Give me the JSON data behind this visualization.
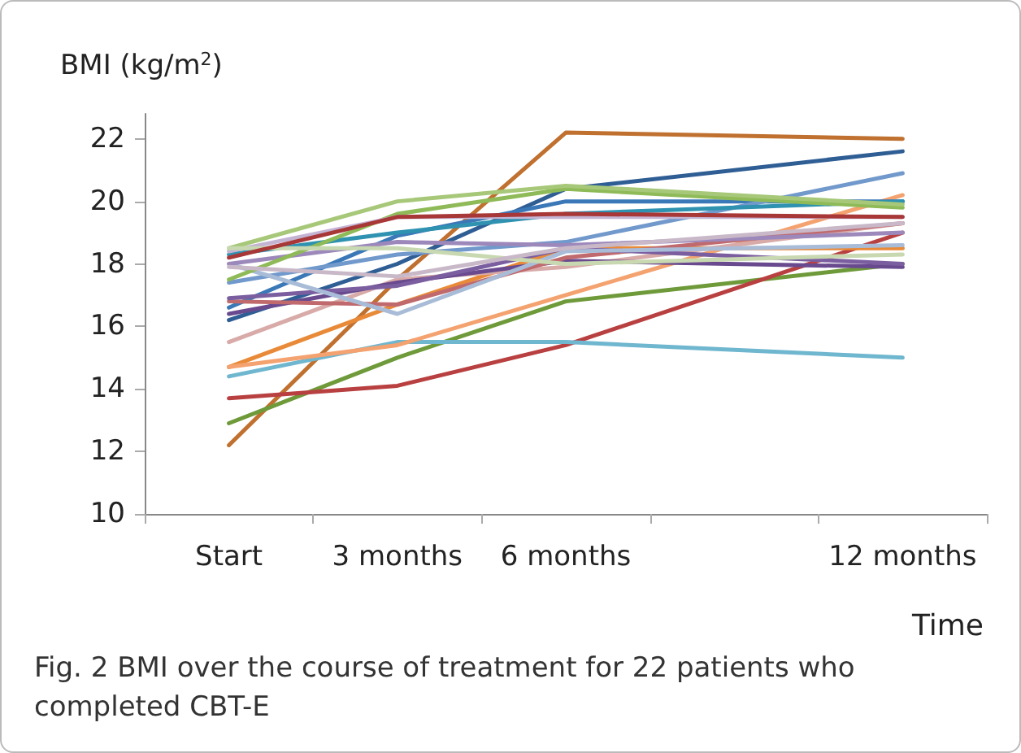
{
  "chart_data": {
    "type": "line",
    "ylabel": "BMI (kg/m$^{2}$)",
    "xlabel": "Time",
    "annotations": [
      "Fig. 2 BMI over the course of treatment for 22 patients who completed CBT-E"
    ],
    "x": [
      0,
      3,
      6,
      12
    ],
    "xlim": [
      -1.5,
      13.5
    ],
    "xticks": [
      {
        "value": -1.5,
        "label": null
      },
      {
        "value": 0,
        "label": "Start"
      },
      {
        "value": 1.5,
        "label": null
      },
      {
        "value": 3,
        "label": "3 months"
      },
      {
        "value": 4.5,
        "label": null
      },
      {
        "value": 6,
        "label": "6 months"
      },
      {
        "value": 7.5,
        "label": null
      },
      {
        "value": 10.5,
        "label": null
      },
      {
        "value": 12,
        "label": "12 months"
      },
      {
        "value": 13.5,
        "label": null
      }
    ],
    "ylim": [
      10,
      22.8
    ],
    "yticks": [
      10,
      12,
      14,
      16,
      18,
      20,
      22
    ],
    "grid": false,
    "marker": "none",
    "line_style": "solid",
    "series": [
      {
        "color": "#c0702f",
        "values": [
          12.2,
          17.5,
          22.2,
          22.0
        ]
      },
      {
        "color": "#6e9a3a",
        "values": [
          12.9,
          15.0,
          16.8,
          18.0
        ]
      },
      {
        "color": "#b94040",
        "values": [
          13.7,
          14.1,
          15.4,
          19.0
        ]
      },
      {
        "color": "#6fb6cf",
        "values": [
          14.4,
          15.5,
          15.5,
          15.0
        ]
      },
      {
        "color": "#e88a38",
        "values": [
          14.7,
          16.7,
          18.5,
          18.5
        ]
      },
      {
        "color": "#f4a26f",
        "values": [
          14.7,
          15.4,
          17.0,
          20.2
        ]
      },
      {
        "color": "#d8aaa8",
        "values": [
          15.5,
          17.5,
          17.9,
          19.3
        ]
      },
      {
        "color": "#2f5e95",
        "values": [
          16.2,
          18.0,
          20.4,
          21.6
        ]
      },
      {
        "color": "#6a4a8f",
        "values": [
          16.4,
          17.4,
          18.1,
          17.9
        ]
      },
      {
        "color": "#3b78b8",
        "values": [
          16.6,
          18.9,
          20.0,
          20.0
        ]
      },
      {
        "color": "#c06a6e",
        "values": [
          16.8,
          16.7,
          18.2,
          19.3
        ]
      },
      {
        "color": "#7b5ea0",
        "values": [
          16.9,
          17.3,
          18.5,
          18.0
        ]
      },
      {
        "color": "#7199cc",
        "values": [
          17.4,
          18.3,
          18.7,
          20.9
        ]
      },
      {
        "color": "#a8bcd8",
        "values": [
          18.0,
          16.4,
          18.4,
          18.6
        ]
      },
      {
        "color": "#9c88bb",
        "values": [
          18.0,
          18.7,
          18.6,
          19.0
        ]
      },
      {
        "color": "#2e92b0",
        "values": [
          18.3,
          19.0,
          19.6,
          20.0
        ]
      },
      {
        "color": "#8fba58",
        "values": [
          17.5,
          19.6,
          20.4,
          19.8
        ]
      },
      {
        "color": "#c4b4d4",
        "values": [
          18.4,
          19.5,
          19.5,
          19.5
        ]
      },
      {
        "color": "#a6c878",
        "values": [
          18.5,
          20.0,
          20.5,
          19.9
        ]
      },
      {
        "color": "#c8d8b0",
        "values": [
          18.5,
          18.5,
          18.0,
          18.3
        ]
      },
      {
        "color": "#a83838",
        "values": [
          18.2,
          19.5,
          19.6,
          19.5
        ]
      },
      {
        "color": "#c8b8c8",
        "values": [
          17.9,
          17.6,
          18.5,
          19.3
        ]
      }
    ]
  }
}
